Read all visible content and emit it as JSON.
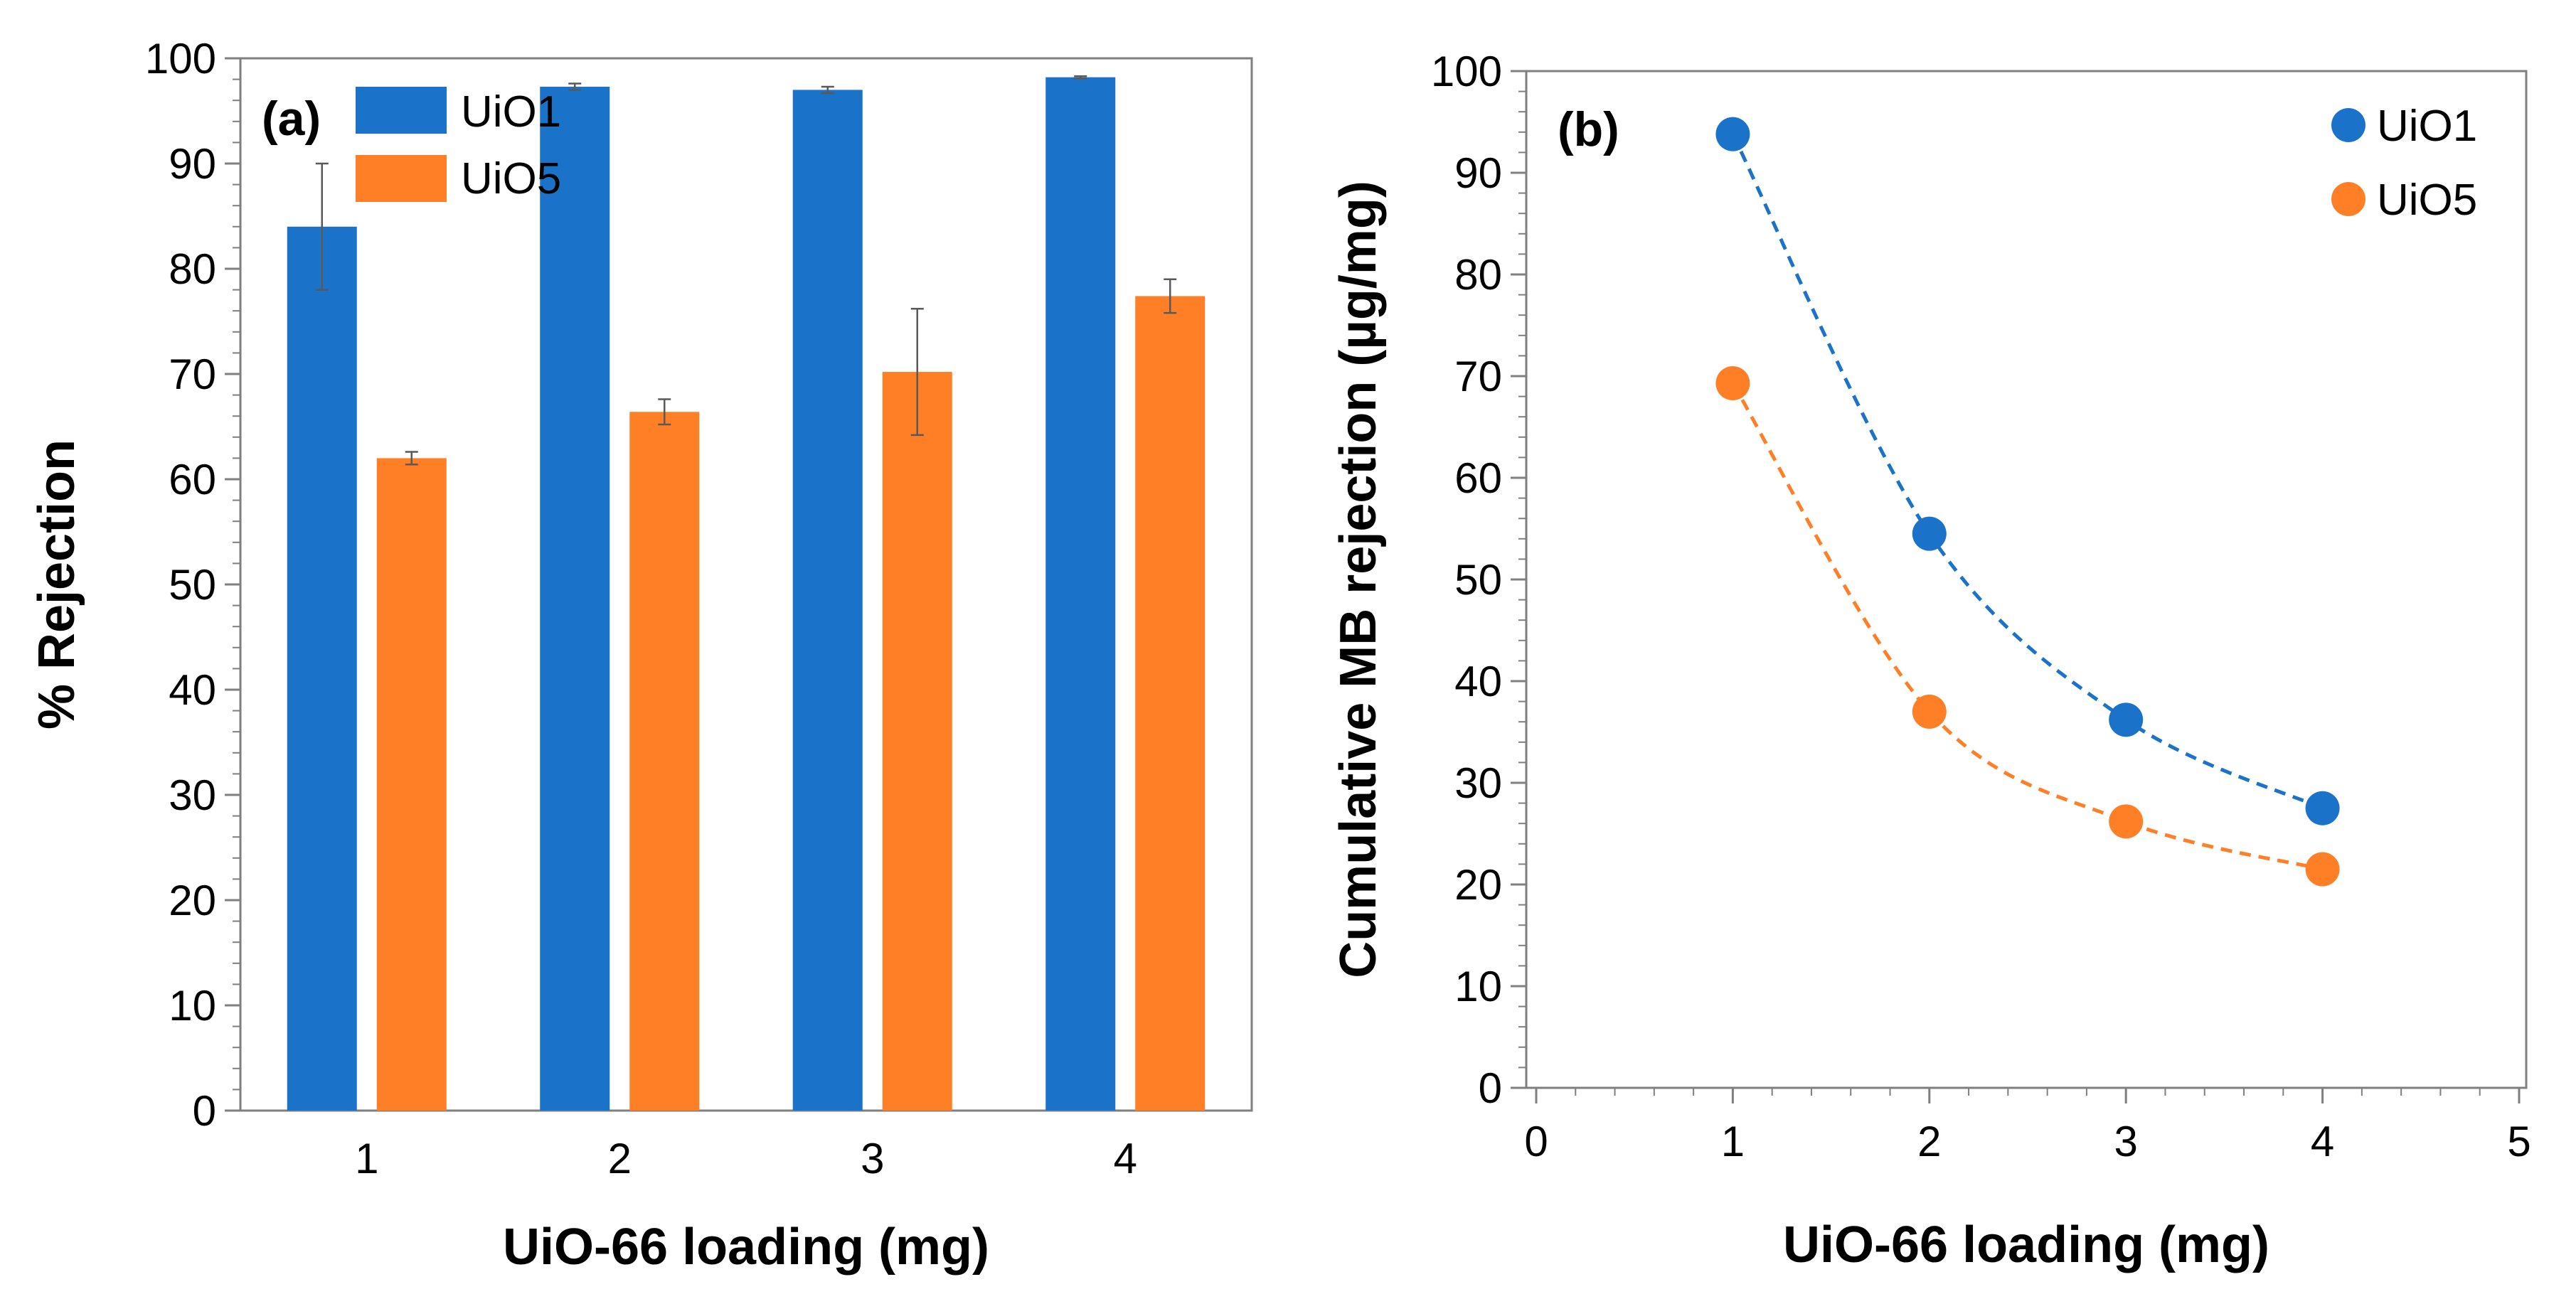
{
  "chart_data": [
    {
      "type": "bar",
      "panel_label": "(a)",
      "categories": [
        "1",
        "2",
        "3",
        "4"
      ],
      "xlabel": "UiO-66 loading (mg)",
      "ylabel": "% Rejection",
      "ylim": [
        0,
        100
      ],
      "yticks": [
        "0",
        "10",
        "20",
        "30",
        "40",
        "50",
        "60",
        "70",
        "80",
        "90",
        "100"
      ],
      "grid": false,
      "legend_position": "top-left",
      "series": [
        {
          "name": "UiO1",
          "color": "#1B72C9",
          "values": [
            84.0,
            97.3,
            97.0,
            98.2
          ],
          "errors": [
            6.0,
            0.3,
            0.3,
            0.1
          ]
        },
        {
          "name": "UiO5",
          "color": "#FF7F27",
          "values": [
            62.0,
            66.4,
            70.2,
            77.4
          ],
          "errors": [
            0.6,
            1.2,
            6.0,
            1.6
          ]
        }
      ]
    },
    {
      "type": "scatter",
      "panel_label": "(b)",
      "xlabel": "UiO-66 loading (mg)",
      "ylabel": "Cumulative MB rejection (µg/mg)",
      "xlim": [
        0,
        5
      ],
      "ylim": [
        0,
        100
      ],
      "xticks": [
        "0",
        "1",
        "2",
        "3",
        "4",
        "5"
      ],
      "yticks": [
        "0",
        "10",
        "20",
        "30",
        "40",
        "50",
        "60",
        "70",
        "80",
        "90",
        "100"
      ],
      "grid": false,
      "legend_position": "top-right",
      "trendline": "dashed",
      "series": [
        {
          "name": "UiO1",
          "color": "#1B72C9",
          "x": [
            1,
            2,
            3,
            4
          ],
          "y": [
            93.8,
            54.5,
            36.2,
            27.5
          ]
        },
        {
          "name": "UiO5",
          "color": "#FF7F27",
          "x": [
            1,
            2,
            3,
            4
          ],
          "y": [
            69.3,
            37.0,
            26.2,
            21.5
          ]
        }
      ]
    }
  ]
}
